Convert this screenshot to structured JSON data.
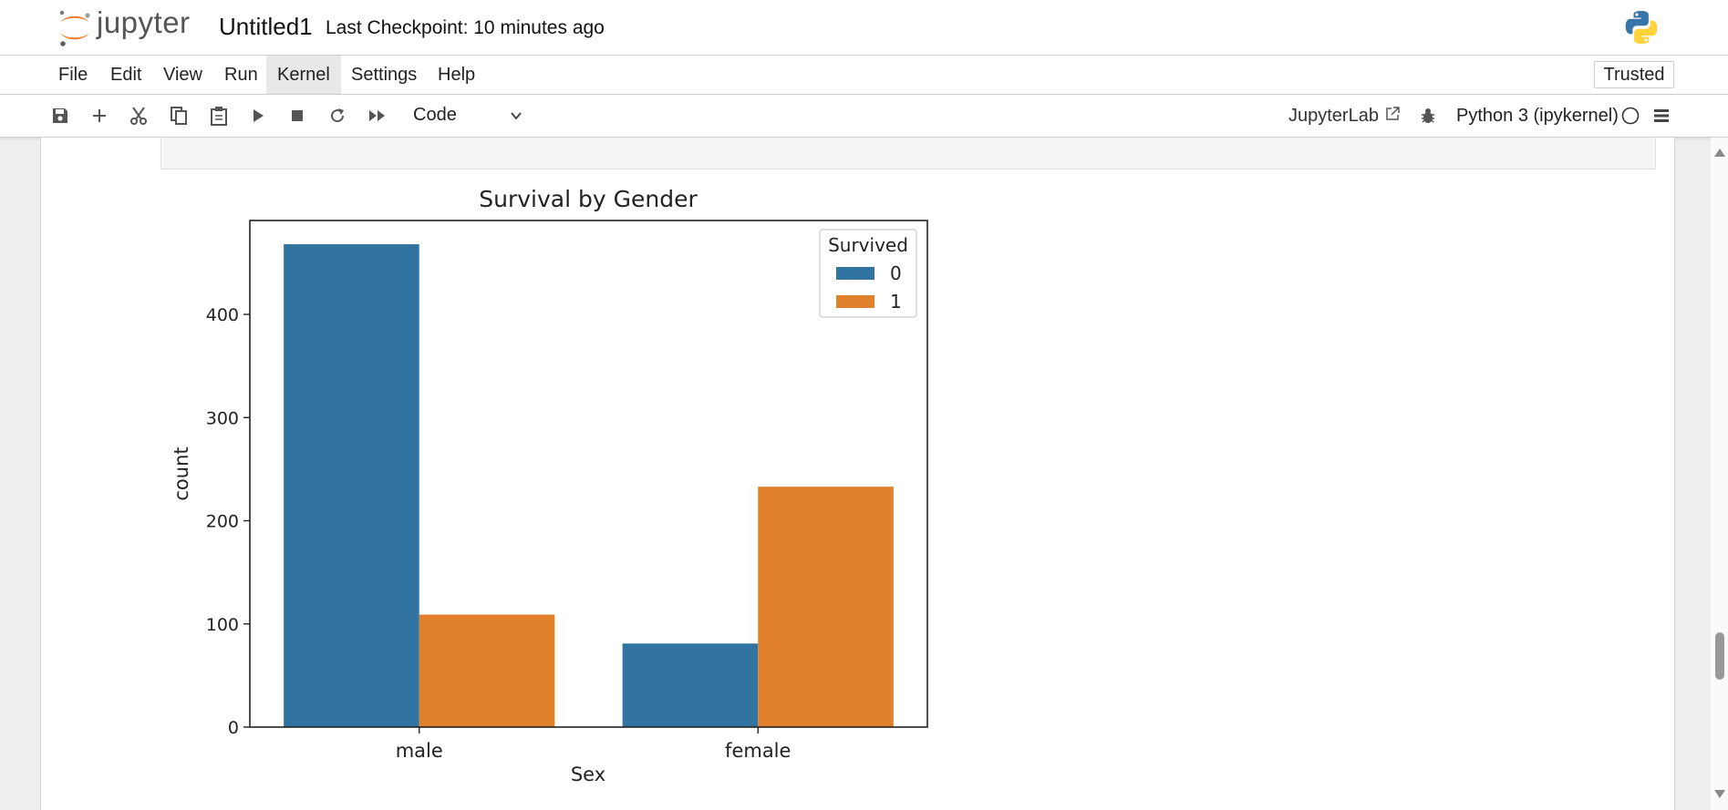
{
  "app": {
    "brand": "jupyter",
    "notebook_title": "Untitled1",
    "checkpoint": "Last Checkpoint: 10 minutes ago"
  },
  "menu": {
    "items": [
      "File",
      "Edit",
      "View",
      "Run",
      "Kernel",
      "Settings",
      "Help"
    ],
    "active": "Kernel",
    "trusted": "Trusted"
  },
  "toolbar": {
    "icons": [
      "save-icon",
      "add-cell-icon",
      "cut-icon",
      "copy-icon",
      "paste-icon",
      "run-icon",
      "stop-icon",
      "restart-icon",
      "run-all-icon"
    ],
    "cell_type": "Code",
    "jupyterlab_link": "JupyterLab",
    "kernel_name": "Python 3 (ipykernel)"
  },
  "colors": {
    "series0": "#3274a1",
    "series1": "#e1812c",
    "jupyter_orange": "#f37726"
  },
  "chart_data": {
    "type": "bar",
    "title": "Survival by Gender",
    "xlabel": "Sex",
    "ylabel": "count",
    "categories": [
      "male",
      "female"
    ],
    "series": [
      {
        "name": "0",
        "values": [
          468,
          81
        ]
      },
      {
        "name": "1",
        "values": [
          109,
          233
        ]
      }
    ],
    "legend_title": "Survived",
    "legend_position": "top-right",
    "yticks": [
      0,
      100,
      200,
      300,
      400
    ],
    "ylim": [
      0,
      491
    ],
    "grid": false
  }
}
